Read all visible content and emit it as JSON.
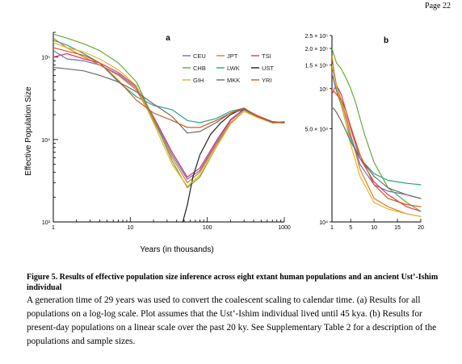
{
  "page": {
    "number": "Page 22"
  },
  "caption": {
    "title": "Figure 5. Results of effective population size inference across eight extant human populations and an ancient Ust’-Ishim individual",
    "body": "A generation time of 29 years was used to convert the coalescent scaling to calendar time. (a) Results for all populations on a log-log scale. Plot assumes that the Ust’-Ishim individual lived until 45 kya. (b) Results for present-day populations on a linear scale over the past 20 ky. See Supplementary Table 2 for a description of the populations and sample sizes."
  },
  "colors": {
    "CEU": "#6670c0",
    "JPT": "#e07b1e",
    "TSI": "#e0356b",
    "CHB": "#68a83c",
    "LWK": "#2aa38c",
    "UST": "#222222",
    "GIH": "#e6b228",
    "MKK": "#6b6b6b",
    "YRI": "#d25a1c"
  },
  "chart_data": [
    {
      "panel": "a",
      "type": "line",
      "xscale": "log",
      "yscale": "log",
      "xlabel": "Years (in thousands)",
      "ylabel": "Effective Population Size",
      "xlim": [
        1,
        1000
      ],
      "ylim": [
        1000,
        200000
      ],
      "xticks": [
        {
          "v": 1,
          "label": "1"
        },
        {
          "v": 10,
          "label": "10"
        },
        {
          "v": 100,
          "label": "100"
        },
        {
          "v": 1000,
          "label": "1000"
        }
      ],
      "yticks": [
        {
          "v": 1000,
          "label": "10³"
        },
        {
          "v": 10000,
          "label": "10⁴"
        },
        {
          "v": 100000,
          "label": "10⁵"
        }
      ],
      "legend": {
        "position": "top-right",
        "order": [
          "CEU",
          "JPT",
          "TSI",
          "CHB",
          "LWK",
          "UST",
          "GIH",
          "MKK",
          "YRI"
        ]
      },
      "series": [
        {
          "name": "CEU",
          "points": [
            [
              1,
              120000
            ],
            [
              1.5,
              95000
            ],
            [
              2.5,
              90000
            ],
            [
              4,
              80000
            ],
            [
              7,
              62000
            ],
            [
              12,
              42000
            ],
            [
              20,
              18000
            ],
            [
              35,
              6500
            ],
            [
              55,
              3300
            ],
            [
              80,
              4200
            ],
            [
              130,
              9000
            ],
            [
              200,
              17000
            ],
            [
              300,
              23000
            ],
            [
              450,
              19000
            ],
            [
              700,
              16000
            ],
            [
              1000,
              16000
            ]
          ]
        },
        {
          "name": "JPT",
          "points": [
            [
              1,
              170000
            ],
            [
              1.5,
              130000
            ],
            [
              2.5,
              100000
            ],
            [
              4,
              80000
            ],
            [
              7,
              60000
            ],
            [
              12,
              40000
            ],
            [
              20,
              17000
            ],
            [
              35,
              6000
            ],
            [
              55,
              3000
            ],
            [
              80,
              4000
            ],
            [
              130,
              8500
            ],
            [
              200,
              16000
            ],
            [
              300,
              22000
            ],
            [
              450,
              19000
            ],
            [
              700,
              16000
            ],
            [
              1000,
              16000
            ]
          ]
        },
        {
          "name": "TSI",
          "points": [
            [
              1,
              100000
            ],
            [
              1.5,
              110000
            ],
            [
              2.5,
              95000
            ],
            [
              4,
              85000
            ],
            [
              7,
              65000
            ],
            [
              12,
              44000
            ],
            [
              20,
              19000
            ],
            [
              35,
              7000
            ],
            [
              55,
              3500
            ],
            [
              80,
              4500
            ],
            [
              130,
              9500
            ],
            [
              200,
              17500
            ],
            [
              300,
              23500
            ],
            [
              450,
              19500
            ],
            [
              700,
              16500
            ],
            [
              1000,
              16000
            ]
          ]
        },
        {
          "name": "CHB",
          "points": [
            [
              1,
              190000
            ],
            [
              1.5,
              170000
            ],
            [
              2.5,
              145000
            ],
            [
              4,
              120000
            ],
            [
              7,
              85000
            ],
            [
              12,
              50000
            ],
            [
              20,
              18000
            ],
            [
              35,
              5500
            ],
            [
              55,
              2600
            ],
            [
              80,
              3500
            ],
            [
              130,
              8000
            ],
            [
              200,
              15500
            ],
            [
              300,
              22000
            ],
            [
              450,
              18500
            ],
            [
              700,
              16000
            ],
            [
              1000,
              16000
            ]
          ]
        },
        {
          "name": "LWK",
          "points": [
            [
              1,
              160000
            ],
            [
              1.5,
              140000
            ],
            [
              2.5,
              110000
            ],
            [
              4,
              85000
            ],
            [
              7,
              50000
            ],
            [
              12,
              33000
            ],
            [
              20,
              26000
            ],
            [
              35,
              23000
            ],
            [
              55,
              17000
            ],
            [
              80,
              16000
            ],
            [
              130,
              18000
            ],
            [
              200,
              22000
            ],
            [
              300,
              24000
            ],
            [
              450,
              19000
            ],
            [
              700,
              16500
            ],
            [
              1000,
              16000
            ]
          ]
        },
        {
          "name": "UST",
          "points": [
            [
              48,
              1000
            ],
            [
              55,
              1600
            ],
            [
              65,
              3500
            ],
            [
              80,
              6500
            ],
            [
              110,
              11500
            ],
            [
              150,
              16000
            ],
            [
              200,
              20000
            ],
            [
              300,
              24000
            ],
            [
              450,
              19000
            ],
            [
              700,
              16000
            ],
            [
              1000,
              16000
            ]
          ]
        },
        {
          "name": "GIH",
          "points": [
            [
              1,
              150000
            ],
            [
              1.5,
              130000
            ],
            [
              2.5,
              115000
            ],
            [
              4,
              95000
            ],
            [
              7,
              70000
            ],
            [
              12,
              45000
            ],
            [
              20,
              16000
            ],
            [
              35,
              5000
            ],
            [
              55,
              2700
            ],
            [
              80,
              3700
            ],
            [
              130,
              8000
            ],
            [
              200,
              15500
            ],
            [
              300,
              22000
            ],
            [
              450,
              18500
            ],
            [
              700,
              16000
            ],
            [
              1000,
              16000
            ]
          ]
        },
        {
          "name": "MKK",
          "points": [
            [
              1,
              75000
            ],
            [
              1.5,
              72000
            ],
            [
              2.5,
              68000
            ],
            [
              4,
              60000
            ],
            [
              7,
              50000
            ],
            [
              12,
              38000
            ],
            [
              20,
              27000
            ],
            [
              35,
              19000
            ],
            [
              55,
              12000
            ],
            [
              80,
              12500
            ],
            [
              130,
              16000
            ],
            [
              200,
              21000
            ],
            [
              300,
              23000
            ],
            [
              450,
              19000
            ],
            [
              700,
              16500
            ],
            [
              1000,
              16000
            ]
          ]
        },
        {
          "name": "YRI",
          "points": [
            [
              1,
              130000
            ],
            [
              1.5,
              118000
            ],
            [
              2.5,
              105000
            ],
            [
              4,
              85000
            ],
            [
              7,
              52000
            ],
            [
              12,
              30000
            ],
            [
              20,
              21000
            ],
            [
              35,
              17000
            ],
            [
              55,
              14000
            ],
            [
              80,
              14000
            ],
            [
              130,
              17000
            ],
            [
              200,
              21000
            ],
            [
              300,
              24000
            ],
            [
              450,
              19000
            ],
            [
              700,
              16000
            ],
            [
              1000,
              16500
            ]
          ]
        }
      ]
    },
    {
      "panel": "b",
      "type": "line",
      "xscale": "linear",
      "yscale": "log",
      "xlim": [
        1,
        20
      ],
      "ylim": [
        10000,
        250000
      ],
      "xticks": [
        {
          "v": 1,
          "label": "1"
        },
        {
          "v": 5,
          "label": "5"
        },
        {
          "v": 10,
          "label": "10"
        },
        {
          "v": 15,
          "label": "15"
        },
        {
          "v": 20,
          "label": "20"
        }
      ],
      "yticks": [
        {
          "v": 10000,
          "label": "10⁴"
        },
        {
          "v": 50000,
          "label": "5.0 × 10⁴"
        },
        {
          "v": 100000,
          "label": "10⁵"
        },
        {
          "v": 150000,
          "label": "1.5 × 10⁵"
        },
        {
          "v": 200000,
          "label": "2.0 × 10⁵"
        },
        {
          "v": 250000,
          "label": "2.5 × 10⁵"
        }
      ],
      "series": [
        {
          "name": "CEU",
          "points": [
            [
              1,
              130000
            ],
            [
              1.5,
              110000
            ],
            [
              2,
              95000
            ],
            [
              3,
              80000
            ],
            [
              4,
              62000
            ],
            [
              5,
              45000
            ],
            [
              7,
              27000
            ],
            [
              10,
              19000
            ],
            [
              13,
              17000
            ],
            [
              17,
              16000
            ],
            [
              20,
              15000
            ]
          ]
        },
        {
          "name": "JPT",
          "points": [
            [
              1,
              175000
            ],
            [
              1.5,
              130000
            ],
            [
              2,
              105000
            ],
            [
              3,
              82000
            ],
            [
              4,
              60000
            ],
            [
              5,
              45000
            ],
            [
              7,
              25000
            ],
            [
              10,
              15000
            ],
            [
              13,
              13000
            ],
            [
              17,
              11500
            ],
            [
              20,
              11000
            ]
          ]
        },
        {
          "name": "TSI",
          "points": [
            [
              1,
              90000
            ],
            [
              1.5,
              100000
            ],
            [
              2,
              105000
            ],
            [
              2.5,
              98000
            ],
            [
              3,
              90000
            ],
            [
              4,
              68000
            ],
            [
              5,
              50000
            ],
            [
              7,
              30000
            ],
            [
              10,
              20000
            ],
            [
              13,
              16000
            ],
            [
              17,
              13000
            ],
            [
              20,
              12000
            ]
          ]
        },
        {
          "name": "CHB",
          "points": [
            [
              1,
              200000
            ],
            [
              1.5,
              175000
            ],
            [
              2,
              155000
            ],
            [
              3,
              140000
            ],
            [
              4,
              120000
            ],
            [
              5,
              100000
            ],
            [
              6,
              80000
            ],
            [
              8,
              45000
            ],
            [
              10,
              28000
            ],
            [
              13,
              18000
            ],
            [
              17,
              14000
            ],
            [
              20,
              12000
            ]
          ]
        },
        {
          "name": "LWK",
          "points": [
            [
              1,
              150000
            ],
            [
              1.5,
              125000
            ],
            [
              2,
              95000
            ],
            [
              3,
              75000
            ],
            [
              4,
              55000
            ],
            [
              5,
              42000
            ],
            [
              7,
              30000
            ],
            [
              10,
              23000
            ],
            [
              13,
              20500
            ],
            [
              17,
              19500
            ],
            [
              20,
              19000
            ]
          ]
        },
        {
          "name": "GIH",
          "points": [
            [
              1,
              150000
            ],
            [
              1.5,
              120000
            ],
            [
              2,
              102000
            ],
            [
              3,
              78000
            ],
            [
              4,
              55000
            ],
            [
              5,
              38000
            ],
            [
              7,
              22000
            ],
            [
              10,
              14000
            ],
            [
              13,
              12500
            ],
            [
              17,
              11500
            ],
            [
              20,
              11000
            ]
          ]
        },
        {
          "name": "MKK",
          "points": [
            [
              1,
              72000
            ],
            [
              1.5,
              70000
            ],
            [
              2,
              66000
            ],
            [
              3,
              57000
            ],
            [
              4,
              48000
            ],
            [
              5,
              40000
            ],
            [
              7,
              30000
            ],
            [
              10,
              22000
            ],
            [
              13,
              18000
            ],
            [
              17,
              16000
            ],
            [
              20,
              15000
            ]
          ]
        },
        {
          "name": "YRI",
          "points": [
            [
              1,
              95000
            ],
            [
              1.5,
              95000
            ],
            [
              2,
              90000
            ],
            [
              3,
              82000
            ],
            [
              4,
              68000
            ],
            [
              5,
              52000
            ],
            [
              7,
              32000
            ],
            [
              10,
              19000
            ],
            [
              13,
              15000
            ],
            [
              17,
              13500
            ],
            [
              20,
              13000
            ]
          ]
        }
      ]
    }
  ]
}
